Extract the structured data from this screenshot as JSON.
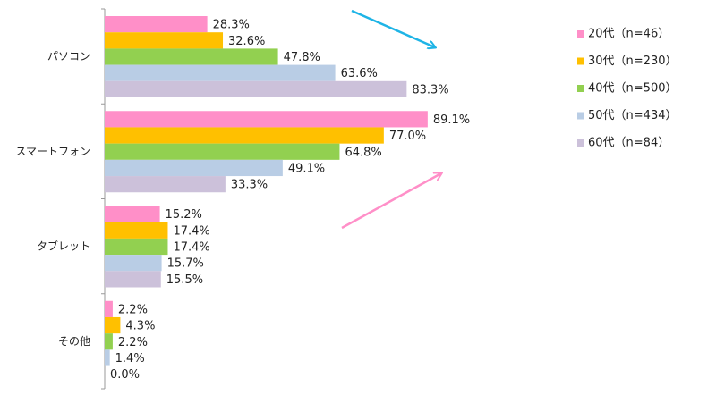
{
  "chart_data": {
    "type": "bar",
    "orientation": "horizontal",
    "categories": [
      "パソコン",
      "スマートフォン",
      "タブレット",
      "その他"
    ],
    "series": [
      {
        "name": "20代（n=46）",
        "color": "#ff8fc8",
        "values": [
          28.3,
          89.1,
          15.2,
          2.2
        ],
        "value_labels": [
          "28.3%",
          "89.1%",
          "15.2%",
          "2.2%"
        ]
      },
      {
        "name": "30代（n=230）",
        "color": "#ffc000",
        "values": [
          32.6,
          77.0,
          17.4,
          4.3
        ],
        "value_labels": [
          "32.6%",
          "77.0%",
          "17.4%",
          "4.3%"
        ]
      },
      {
        "name": "40代（n=500）",
        "color": "#92d050",
        "values": [
          47.8,
          64.8,
          17.4,
          2.2
        ],
        "value_labels": [
          "47.8%",
          "64.8%",
          "17.4%",
          "2.2%"
        ]
      },
      {
        "name": "50代（n=434）",
        "color": "#b9cde5",
        "values": [
          63.6,
          49.1,
          15.7,
          1.4
        ],
        "value_labels": [
          "63.6%",
          "49.1%",
          "15.7%",
          "1.4%"
        ]
      },
      {
        "name": "60代（n=84）",
        "color": "#ccc1da",
        "values": [
          83.3,
          33.3,
          15.5,
          0.0
        ],
        "value_labels": [
          "83.3%",
          "33.3%",
          "15.5%",
          "0.0%"
        ]
      }
    ],
    "legend": "right"
  }
}
